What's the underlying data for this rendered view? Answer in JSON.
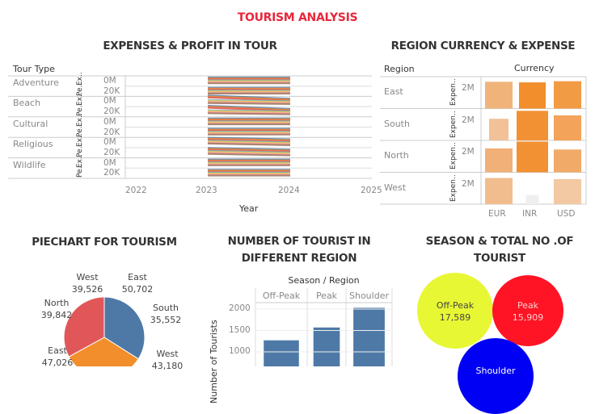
{
  "dashboard_title": "TOURISM ANALYSIS",
  "expenses_chart": {
    "title": "EXPENSES & PROFIT IN TOUR",
    "row_header": "Tour Type",
    "tour_types": [
      "Adventure",
      "Beach",
      "Cultural",
      "Religious",
      "Wildlife"
    ],
    "axis_rows": [
      {
        "measure": "Ex..",
        "tick": "0M"
      },
      {
        "measure": "Pe..",
        "tick": "20K"
      }
    ],
    "xlabel": "Year",
    "x_ticks": [
      "2022",
      "2023",
      "2024",
      "2025"
    ],
    "line_colors": [
      "#4e79a7",
      "#f28e2b",
      "#e15759",
      "#76b7b2",
      "#edc948",
      "#ff9da7",
      "#9c755f",
      "#f1a340"
    ]
  },
  "region_chart": {
    "title": "REGION CURRENCY & EXPENSE",
    "row_header": "Region",
    "col_header": "Currency",
    "axis_label": "Expen..",
    "tick": "2M",
    "currencies": [
      "EUR",
      "INR",
      "USD"
    ],
    "regions": [
      {
        "name": "East",
        "values": [
          2.35,
          2.3,
          2.4
        ],
        "colors": [
          "#f0b47a",
          "#f28e2b",
          "#f29b45"
        ]
      },
      {
        "name": "South",
        "values": [
          1.9,
          2.6,
          2.2
        ],
        "colors": [
          "#f2c197",
          "#f29133",
          "#f3a35a"
        ]
      },
      {
        "name": "North",
        "values": [
          2.1,
          2.7,
          2.0
        ],
        "colors": [
          "#f1b077",
          "#f29133",
          "#f1aa68"
        ]
      },
      {
        "name": "West",
        "values": [
          2.3,
          0.8,
          2.2
        ],
        "colors": [
          "#f2bd8e",
          "#efefef",
          "#f2c9a3"
        ]
      }
    ]
  },
  "pie_chart": {
    "title": "PIECHART FOR TOURISM",
    "labels": [
      {
        "name": "West",
        "value": "39,526"
      },
      {
        "name": "East",
        "value": "50,702"
      },
      {
        "name": "North",
        "value": "39,842"
      },
      {
        "name": "South",
        "value": "35,552"
      },
      {
        "name": "East",
        "value": "47,026"
      },
      {
        "name": "West",
        "value": "43,180"
      }
    ],
    "slices": [
      {
        "color": "#4e79a7",
        "share": 0.34
      },
      {
        "color": "#f28e2b",
        "share": 0.33
      },
      {
        "color": "#e15759",
        "share": 0.33
      }
    ]
  },
  "tourist_bar_chart": {
    "title_line1": "NUMBER OF TOURIST IN",
    "title_line2": "DIFFERENT REGION",
    "header": "Season / Region",
    "ylabel": "Number of Tourists",
    "y_ticks": [
      "2000",
      "1500",
      "1000"
    ],
    "categories": [
      "Off-Peak",
      "Peak",
      "Shoulder"
    ],
    "values": [
      1270,
      1570,
      2030
    ],
    "color": "#4e79a7"
  },
  "season_bubbles": {
    "title_line1": "SEASON & TOTAL NO .OF",
    "title_line2": "TOURIST",
    "bubbles": [
      {
        "name": "Off-Peak",
        "value": "17,589",
        "color": "#e8f734",
        "text_color": "#444"
      },
      {
        "name": "Peak",
        "value": "15,909",
        "color": "#ff1425",
        "text_color": "#ffd0d0"
      },
      {
        "name": "Shoulder",
        "value": "",
        "color": "#0000f5",
        "text_color": "#fff"
      }
    ]
  }
}
